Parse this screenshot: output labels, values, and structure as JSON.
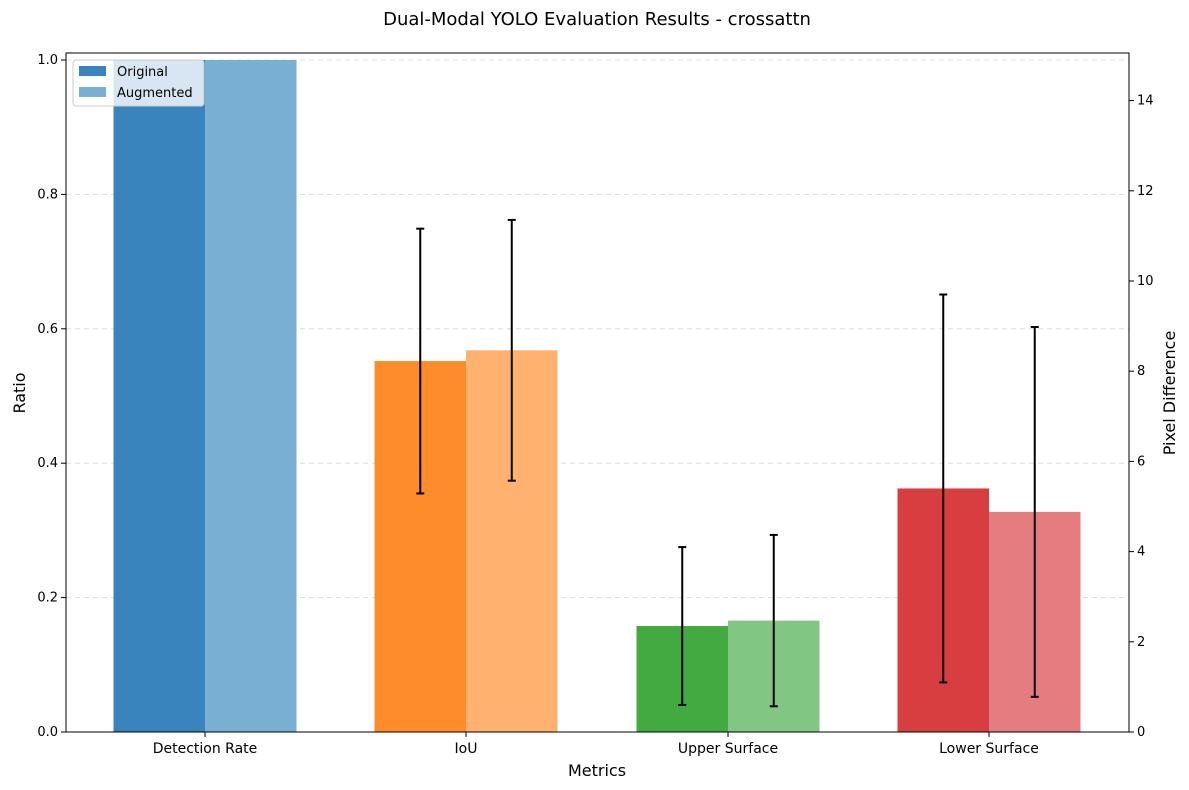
{
  "chart_data": {
    "type": "bar",
    "title": "Dual-Modal YOLO Evaluation Results - crossattn",
    "xlabel": "Metrics",
    "ylabel": "Ratio",
    "y2label": "Pixel Difference",
    "categories": [
      "Detection Rate",
      "IoU",
      "Upper Surface",
      "Lower Surface"
    ],
    "ylim": [
      0,
      1.0
    ],
    "y2lim": [
      0,
      14.9
    ],
    "yticks": [
      "0.0",
      "0.2",
      "0.4",
      "0.6",
      "0.8",
      "1.0"
    ],
    "y2ticks": [
      "0",
      "2",
      "4",
      "6",
      "8",
      "10",
      "12",
      "14"
    ],
    "grid": "horizontal dashed",
    "legend_position": "upper-left",
    "series": [
      {
        "name": "Original",
        "legend_color": "#3a84be",
        "values": [
          {
            "category": "Detection Rate",
            "axis": "left",
            "value": 1.0,
            "error": null,
            "color": "#3a84be"
          },
          {
            "category": "IoU",
            "axis": "left",
            "value": 0.552,
            "error": 0.197,
            "color": "#ff8c2b"
          },
          {
            "category": "Upper Surface",
            "axis": "right",
            "value": 2.35,
            "error": 1.75,
            "color": "#43aa42"
          },
          {
            "category": "Lower Surface",
            "axis": "right",
            "value": 5.4,
            "error": 4.3,
            "color": "#d83d3f"
          }
        ]
      },
      {
        "name": "Augmented",
        "legend_color": "#78afd3",
        "values": [
          {
            "category": "Detection Rate",
            "axis": "left",
            "value": 1.0,
            "error": null,
            "color": "#78afd3"
          },
          {
            "category": "IoU",
            "axis": "left",
            "value": 0.568,
            "error": 0.194,
            "color": "#ffb26f"
          },
          {
            "category": "Upper Surface",
            "axis": "right",
            "value": 2.47,
            "error": 1.9,
            "color": "#81c682"
          },
          {
            "category": "Lower Surface",
            "axis": "right",
            "value": 4.88,
            "error": 4.1,
            "color": "#e57c7f"
          }
        ]
      }
    ]
  }
}
